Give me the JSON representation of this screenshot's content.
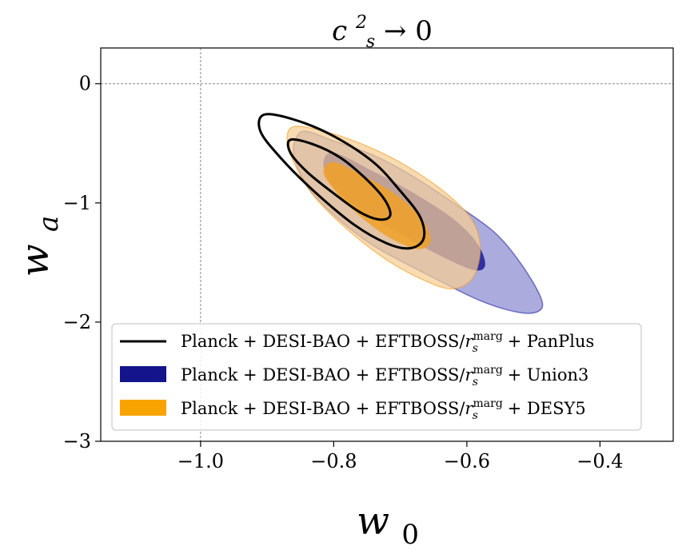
{
  "chart_data": {
    "type": "contour",
    "title": {
      "base": "c",
      "sup": "2",
      "sub": "s",
      "rest": " → 0"
    },
    "xlabel": {
      "base": "w",
      "sub": "0"
    },
    "ylabel": {
      "base": "w",
      "sub": "a"
    },
    "xlim": [
      -1.15,
      -0.29
    ],
    "ylim": [
      -3.0,
      0.3
    ],
    "xticks": [
      -1.0,
      -0.8,
      -0.6,
      -0.4
    ],
    "xtick_labels": [
      "−1.0",
      "−0.8",
      "−0.6",
      "−0.4"
    ],
    "yticks": [
      0,
      -1,
      -2,
      -3
    ],
    "ytick_labels": [
      "0",
      "−1",
      "−2",
      "−3"
    ],
    "reference_lines": {
      "x": -1.0,
      "y": 0.0
    },
    "legend_position": "lower-left",
    "series": [
      {
        "name": "Union3",
        "legend": {
          "pre": "Planck + DESI-BAO + EFTBOSS/",
          "r": "r",
          "sub": "s",
          "sup": "marg",
          "post": " + Union3"
        },
        "style": "filled",
        "color_outer": "#8a8ad0",
        "color_inner": "#1a1a9a",
        "contour_95": [
          [
            -0.84,
            -0.4
          ],
          [
            -0.8,
            -0.48
          ],
          [
            -0.74,
            -0.6
          ],
          [
            -0.68,
            -0.78
          ],
          [
            -0.62,
            -1.0
          ],
          [
            -0.56,
            -1.24
          ],
          [
            -0.52,
            -1.5
          ],
          [
            -0.49,
            -1.78
          ],
          [
            -0.49,
            -1.9
          ],
          [
            -0.52,
            -1.92
          ],
          [
            -0.58,
            -1.82
          ],
          [
            -0.66,
            -1.6
          ],
          [
            -0.74,
            -1.36
          ],
          [
            -0.8,
            -1.1
          ],
          [
            -0.84,
            -0.86
          ],
          [
            -0.86,
            -0.6
          ],
          [
            -0.855,
            -0.44
          ]
        ],
        "contour_68": [
          [
            -0.8,
            -0.58
          ],
          [
            -0.74,
            -0.74
          ],
          [
            -0.68,
            -0.92
          ],
          [
            -0.62,
            -1.14
          ],
          [
            -0.585,
            -1.34
          ],
          [
            -0.573,
            -1.52
          ],
          [
            -0.59,
            -1.56
          ],
          [
            -0.64,
            -1.44
          ],
          [
            -0.7,
            -1.26
          ],
          [
            -0.76,
            -1.06
          ],
          [
            -0.8,
            -0.86
          ],
          [
            -0.815,
            -0.68
          ]
        ]
      },
      {
        "name": "DESY5",
        "legend": {
          "pre": "Planck + DESI-BAO + EFTBOSS/",
          "r": "r",
          "sub": "s",
          "sup": "marg",
          "post": " + DESY5"
        },
        "style": "filled",
        "color_outer": "#f6cd93",
        "color_inner": "#f0a126",
        "contour_95": [
          [
            -0.86,
            -0.36
          ],
          [
            -0.82,
            -0.39
          ],
          [
            -0.76,
            -0.5
          ],
          [
            -0.7,
            -0.66
          ],
          [
            -0.64,
            -0.88
          ],
          [
            -0.595,
            -1.12
          ],
          [
            -0.58,
            -1.36
          ],
          [
            -0.59,
            -1.62
          ],
          [
            -0.62,
            -1.72
          ],
          [
            -0.66,
            -1.66
          ],
          [
            -0.72,
            -1.48
          ],
          [
            -0.78,
            -1.22
          ],
          [
            -0.83,
            -0.94
          ],
          [
            -0.86,
            -0.66
          ],
          [
            -0.87,
            -0.46
          ]
        ],
        "contour_68": [
          [
            -0.8,
            -0.66
          ],
          [
            -0.76,
            -0.76
          ],
          [
            -0.71,
            -0.92
          ],
          [
            -0.67,
            -1.12
          ],
          [
            -0.655,
            -1.3
          ],
          [
            -0.665,
            -1.38
          ],
          [
            -0.69,
            -1.36
          ],
          [
            -0.73,
            -1.24
          ],
          [
            -0.77,
            -1.06
          ],
          [
            -0.8,
            -0.88
          ],
          [
            -0.815,
            -0.74
          ]
        ]
      },
      {
        "name": "PanPlus",
        "legend": {
          "pre": "Planck + DESI-BAO + EFTBOSS/",
          "r": "r",
          "sub": "s",
          "sup": "marg",
          "post": " + PanPlus"
        },
        "style": "line",
        "color": "#000000",
        "contour_95": [
          [
            -0.905,
            -0.26
          ],
          [
            -0.86,
            -0.3
          ],
          [
            -0.8,
            -0.44
          ],
          [
            -0.74,
            -0.66
          ],
          [
            -0.7,
            -0.9
          ],
          [
            -0.67,
            -1.12
          ],
          [
            -0.665,
            -1.3
          ],
          [
            -0.685,
            -1.38
          ],
          [
            -0.72,
            -1.34
          ],
          [
            -0.77,
            -1.18
          ],
          [
            -0.83,
            -0.9
          ],
          [
            -0.88,
            -0.62
          ],
          [
            -0.91,
            -0.4
          ]
        ],
        "contour_68": [
          [
            -0.865,
            -0.47
          ],
          [
            -0.83,
            -0.51
          ],
          [
            -0.79,
            -0.62
          ],
          [
            -0.755,
            -0.78
          ],
          [
            -0.725,
            -0.96
          ],
          [
            -0.715,
            -1.1
          ],
          [
            -0.73,
            -1.14
          ],
          [
            -0.76,
            -1.08
          ],
          [
            -0.8,
            -0.92
          ],
          [
            -0.84,
            -0.74
          ],
          [
            -0.865,
            -0.58
          ]
        ]
      }
    ],
    "legend_order": [
      "PanPlus",
      "Union3",
      "DESY5"
    ]
  }
}
